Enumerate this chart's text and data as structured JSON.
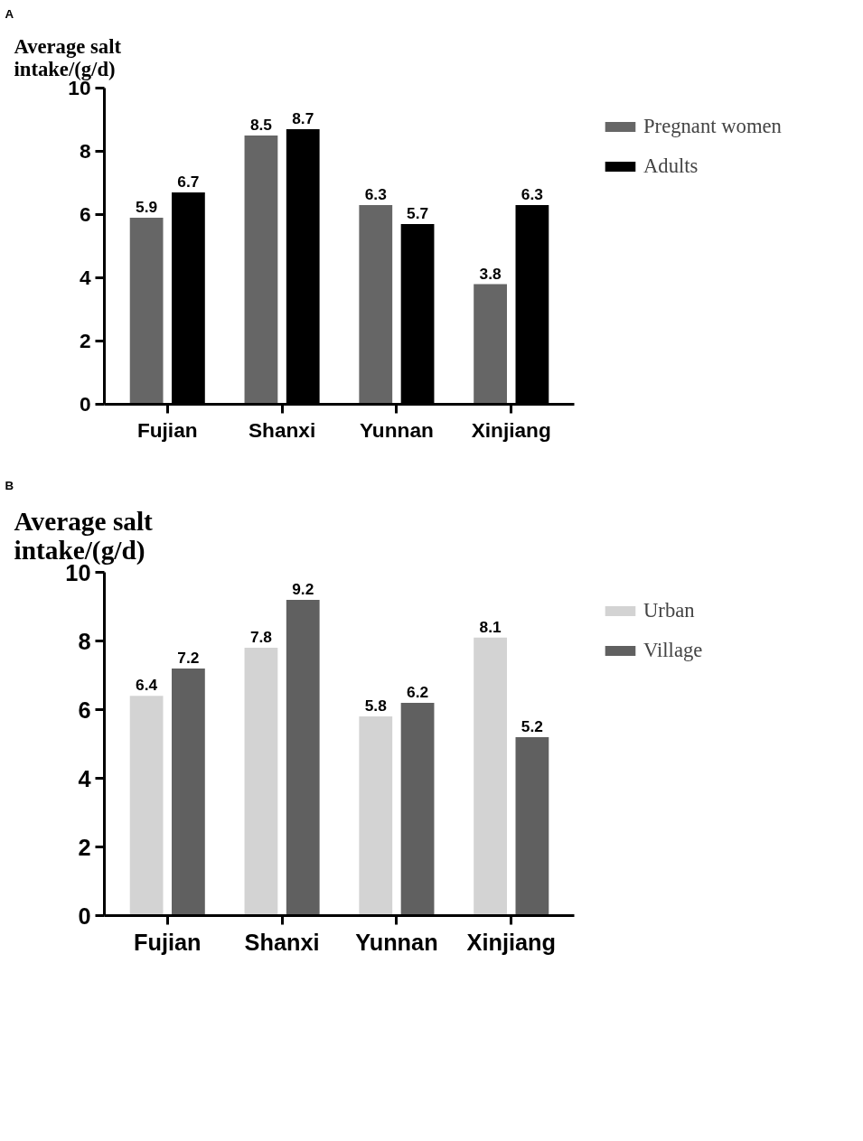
{
  "chart_data": [
    {
      "type": "bar",
      "title": "A",
      "ylabel": "Average salt\nintake/(g/d)",
      "categories": [
        "Fujian",
        "Shanxi",
        "Yunnan",
        "Xinjiang"
      ],
      "series": [
        {
          "name": "Pregnant women",
          "color": "#666666",
          "values": [
            5.9,
            8.5,
            6.3,
            3.8
          ]
        },
        {
          "name": "Adults",
          "color": "#000000",
          "values": [
            6.7,
            8.7,
            5.7,
            6.3
          ]
        }
      ],
      "ylim": [
        0,
        10
      ],
      "yticks": [
        0,
        2,
        4,
        6,
        8,
        10
      ],
      "grid": false,
      "legend": "right",
      "data_labels": true
    },
    {
      "type": "bar",
      "title": "B",
      "ylabel": "Average salt\nintake/(g/d)",
      "categories": [
        "Fujian",
        "Shanxi",
        "Yunnan",
        "Xinjiang"
      ],
      "series": [
        {
          "name": "Urban",
          "color": "#d3d3d3",
          "values": [
            6.4,
            7.8,
            5.8,
            8.1
          ]
        },
        {
          "name": "Village",
          "color": "#606060",
          "values": [
            7.2,
            9.2,
            6.2,
            5.2
          ]
        }
      ],
      "ylim": [
        0,
        10
      ],
      "yticks": [
        0,
        2,
        4,
        6,
        8,
        10
      ],
      "grid": false,
      "legend": "right",
      "data_labels": true
    }
  ]
}
